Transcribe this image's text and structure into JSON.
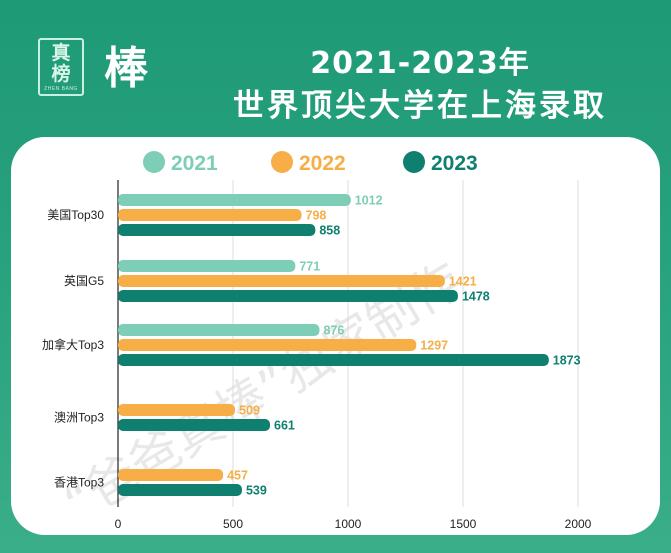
{
  "header": {
    "logo_small": "真\n榜",
    "logo_big": "棒",
    "title_line1": "2021-2023年",
    "title_line2": "世界顶尖大学在上海录取"
  },
  "watermark": "“爸爸真棒”独家制作",
  "colors": {
    "2021": "#7ecdb6",
    "2022": "#f7ae47",
    "2023": "#0f8070",
    "axis": "#222222",
    "grid": "#dddddd"
  },
  "chart_data": {
    "type": "bar",
    "orientation": "horizontal",
    "categories": [
      "美国Top30",
      "英国G5",
      "加拿大Top3",
      "澳洲Top3",
      "香港Top3"
    ],
    "series": [
      {
        "name": "2021",
        "values": [
          1012,
          771,
          876,
          null,
          null
        ]
      },
      {
        "name": "2022",
        "values": [
          798,
          1421,
          1297,
          509,
          457
        ]
      },
      {
        "name": "2023",
        "values": [
          858,
          1478,
          1873,
          661,
          539
        ]
      }
    ],
    "xlim": [
      0,
      2000
    ],
    "xticks": [
      0,
      500,
      1000,
      1500,
      2000
    ],
    "legend_position": "top",
    "grid": true,
    "data_labels": true
  }
}
